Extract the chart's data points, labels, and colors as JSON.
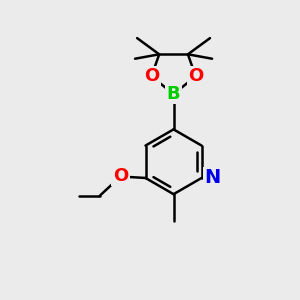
{
  "bg_color": "#ebebeb",
  "bond_color": "#000000",
  "atom_colors": {
    "O": "#ff0000",
    "B": "#00cc00",
    "N": "#0000ee",
    "C": "#000000"
  },
  "bond_width": 1.8,
  "font_size": 13,
  "fig_width": 3.0,
  "fig_height": 3.0,
  "dpi": 100
}
